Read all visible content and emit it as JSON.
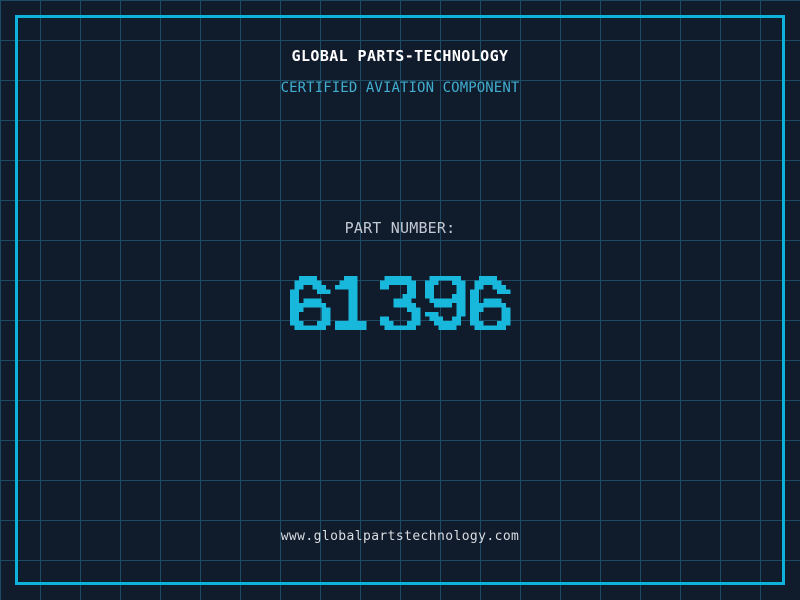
{
  "theme": {
    "background": "#101b2c",
    "grid_line": "#1c4b63",
    "frame_border": "#0cb2d9",
    "title_color": "#ffffff",
    "subtitle_color": "#41aecf",
    "part_label_color": "#c4cad4",
    "part_number_color": "#18b7dc",
    "url_color": "#dadde2"
  },
  "header": {
    "title": "GLOBAL PARTS-TECHNOLOGY",
    "subtitle": "CERTIFIED AVIATION COMPONENT"
  },
  "part": {
    "label": "PART NUMBER:",
    "number": "61396"
  },
  "footer": {
    "url": "www.globalpartstechnology.com"
  }
}
